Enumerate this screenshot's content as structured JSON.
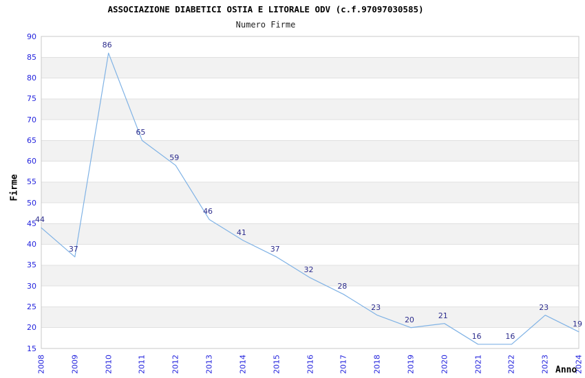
{
  "title": "ASSOCIAZIONE DIABETICI OSTIA E LITORALE ODV (c.f.97097030585)",
  "subtitle": "Numero Firme",
  "chart_data": {
    "type": "line",
    "x": [
      2008,
      2009,
      2010,
      2011,
      2012,
      2013,
      2014,
      2015,
      2016,
      2017,
      2018,
      2019,
      2020,
      2021,
      2022,
      2023,
      2024
    ],
    "values": [
      44,
      37,
      86,
      65,
      59,
      46,
      41,
      37,
      32,
      28,
      23,
      20,
      21,
      16,
      16,
      23,
      19
    ],
    "series_name": "Numero Firme",
    "xlabel": "Anno",
    "ylabel": "Firme",
    "ylim": [
      15,
      90
    ],
    "ytick_step": 5,
    "yticks": [
      15,
      20,
      25,
      30,
      35,
      40,
      45,
      50,
      55,
      60,
      65,
      70,
      75,
      80,
      85,
      90
    ],
    "grid": "horizontal-bands",
    "legend": "none",
    "data_labels_shown": true,
    "colors": {
      "line": "#7fb2e5",
      "tick_label": "#2222dd",
      "data_label": "#2b2b8c",
      "band_gray": "#f2f2f2",
      "band_white": "#ffffff",
      "gridline": "#e0e0e0",
      "border": "#c8c8c8",
      "title": "#000000"
    }
  }
}
